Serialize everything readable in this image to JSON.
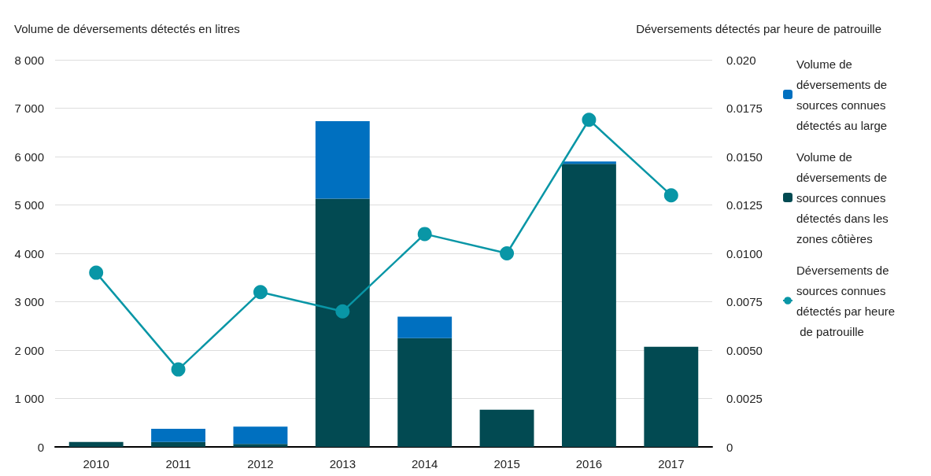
{
  "chart_data": {
    "type": "bar",
    "stacked": true,
    "ylabel": "Volume de déversements détectés en litres",
    "y2label": "Déversements détectés par heure de patrouille",
    "categories": [
      "2010",
      "2011",
      "2012",
      "2013",
      "2014",
      "2015",
      "2016",
      "2017"
    ],
    "series": [
      {
        "name": "Volume de déversements de sources connues détectés dans les zones côtières",
        "color": "#024a52",
        "values": [
          100,
          100,
          60,
          5130,
          2250,
          770,
          5850,
          2070
        ]
      },
      {
        "name": "Volume de déversements de sources connues détectés au large",
        "color": "#0070c0",
        "values": [
          0,
          275,
          360,
          1600,
          440,
          0,
          50,
          0
        ]
      },
      {
        "name": "Déversements de sources connues détectés par heure de patrouille",
        "type": "line",
        "axis": "y2",
        "color": "#0996a6",
        "values": [
          0.009,
          0.004,
          0.008,
          0.007,
          0.011,
          0.01,
          0.0169,
          0.013
        ]
      }
    ],
    "ylim": [
      0,
      8000
    ],
    "yticks": [
      0,
      {
        "value": 1000,
        "label": "1 000"
      },
      {
        "value": 2000,
        "label": "2 000"
      },
      {
        "value": 3000,
        "label": "3 000"
      },
      {
        "value": 4000,
        "label": "4 000"
      },
      {
        "value": 5000,
        "label": "5 000"
      },
      {
        "value": 6000,
        "label": "6 000"
      },
      {
        "value": 7000,
        "label": "7 000"
      },
      {
        "value": 8000,
        "label": "8 000"
      }
    ],
    "y2lim": [
      0,
      0.02
    ],
    "y2ticks": [
      0,
      0.0025,
      {
        "value": 0.005,
        "label": "0.0050"
      },
      0.0075,
      {
        "value": 0.01,
        "label": "0.0100"
      },
      0.0125,
      {
        "value": 0.015,
        "label": "0.0150"
      },
      0.0175,
      {
        "value": 0.02,
        "label": "0.020"
      }
    ],
    "grid": "y",
    "legend": "right",
    "marker": "circle",
    "line_style": "solid"
  }
}
